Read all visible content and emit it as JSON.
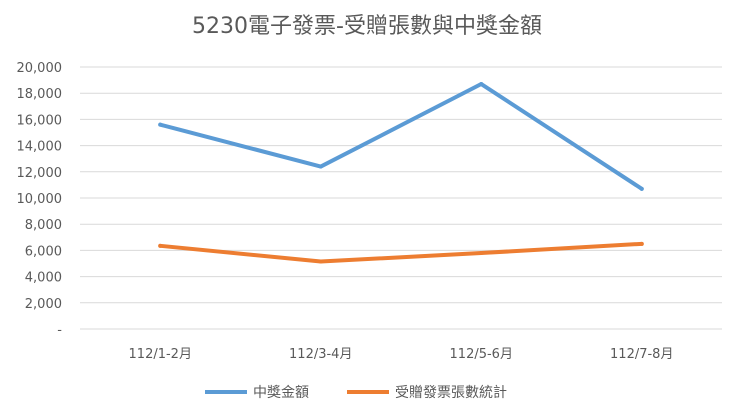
{
  "chart_data": {
    "type": "line",
    "title": "5230電子發票-受贈張數與中獎金額",
    "xlabel": "",
    "ylabel": "",
    "categories": [
      "112/1-2月",
      "112/3-4月",
      "112/5-6月",
      "112/7-8月"
    ],
    "ylim": [
      0,
      20000
    ],
    "yticks": [
      0,
      2000,
      4000,
      6000,
      8000,
      10000,
      12000,
      14000,
      16000,
      18000,
      20000
    ],
    "ytick_labels": [
      "-",
      "2,000",
      "4,000",
      "6,000",
      "8,000",
      "10,000",
      "12,000",
      "14,000",
      "16,000",
      "18,000",
      "20,000"
    ],
    "grid": true,
    "legend_position": "bottom",
    "series": [
      {
        "name": "中獎金額",
        "color": "#5B9BD5",
        "values": [
          15600,
          12400,
          18700,
          10700
        ]
      },
      {
        "name": "受贈發票張數統計",
        "color": "#ED7D31",
        "values": [
          6350,
          5150,
          5800,
          6500
        ]
      }
    ]
  }
}
